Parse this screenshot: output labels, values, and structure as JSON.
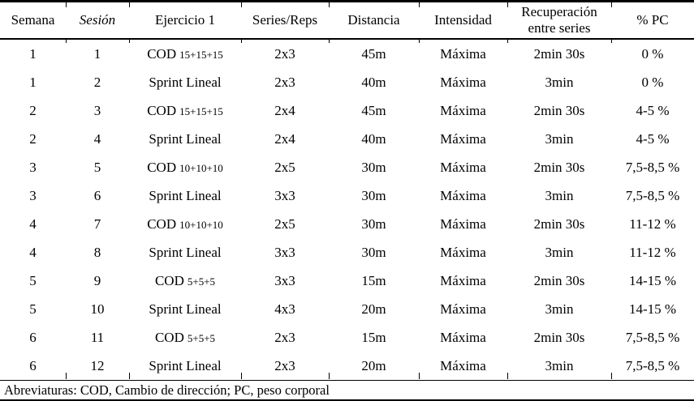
{
  "colors": {
    "background": "#ffffff",
    "text": "#000000",
    "rule": "#000000"
  },
  "table": {
    "headers": [
      "Semana",
      "Sesión",
      "Ejercicio 1",
      "Series/Reps",
      "Distancia",
      "Intensidad",
      "Recuperación entre series",
      "% PC"
    ],
    "rows": [
      {
        "semana": "1",
        "sesion": "1",
        "ejercicio": "COD",
        "ejercicio_sub": "15+15+15",
        "series_reps": "2x3",
        "distancia": "45m",
        "intensidad": "Máxima",
        "recuperacion": "2min 30s",
        "pc": "0 %"
      },
      {
        "semana": "1",
        "sesion": "2",
        "ejercicio": "Sprint Lineal",
        "ejercicio_sub": "",
        "series_reps": "2x3",
        "distancia": "40m",
        "intensidad": "Máxima",
        "recuperacion": "3min",
        "pc": "0 %"
      },
      {
        "semana": "2",
        "sesion": "3",
        "ejercicio": "COD",
        "ejercicio_sub": "15+15+15",
        "series_reps": "2x4",
        "distancia": "45m",
        "intensidad": "Máxima",
        "recuperacion": "2min 30s",
        "pc": "4-5 %"
      },
      {
        "semana": "2",
        "sesion": "4",
        "ejercicio": "Sprint Lineal",
        "ejercicio_sub": "",
        "series_reps": "2x4",
        "distancia": "40m",
        "intensidad": "Máxima",
        "recuperacion": "3min",
        "pc": "4-5 %"
      },
      {
        "semana": "3",
        "sesion": "5",
        "ejercicio": "COD",
        "ejercicio_sub": "10+10+10",
        "series_reps": "2x5",
        "distancia": "30m",
        "intensidad": "Máxima",
        "recuperacion": "2min 30s",
        "pc": "7,5-8,5 %"
      },
      {
        "semana": "3",
        "sesion": "6",
        "ejercicio": "Sprint Lineal",
        "ejercicio_sub": "",
        "series_reps": "3x3",
        "distancia": "30m",
        "intensidad": "Máxima",
        "recuperacion": "3min",
        "pc": "7,5-8,5 %"
      },
      {
        "semana": "4",
        "sesion": "7",
        "ejercicio": "COD",
        "ejercicio_sub": "10+10+10",
        "series_reps": "2x5",
        "distancia": "30m",
        "intensidad": "Máxima",
        "recuperacion": "2min 30s",
        "pc": "11-12 %"
      },
      {
        "semana": "4",
        "sesion": "8",
        "ejercicio": "Sprint Lineal",
        "ejercicio_sub": "",
        "series_reps": "3x3",
        "distancia": "30m",
        "intensidad": "Máxima",
        "recuperacion": "3min",
        "pc": "11-12 %"
      },
      {
        "semana": "5",
        "sesion": "9",
        "ejercicio": "COD",
        "ejercicio_sub": "5+5+5",
        "series_reps": "3x3",
        "distancia": "15m",
        "intensidad": "Máxima",
        "recuperacion": "2min 30s",
        "pc": "14-15 %"
      },
      {
        "semana": "5",
        "sesion": "10",
        "ejercicio": "Sprint Lineal",
        "ejercicio_sub": "",
        "series_reps": "4x3",
        "distancia": "20m",
        "intensidad": "Máxima",
        "recuperacion": "3min",
        "pc": "14-15 %"
      },
      {
        "semana": "6",
        "sesion": "11",
        "ejercicio": "COD",
        "ejercicio_sub": "5+5+5",
        "series_reps": "2x3",
        "distancia": "15m",
        "intensidad": "Máxima",
        "recuperacion": "2min 30s",
        "pc": "7,5-8,5 %"
      },
      {
        "semana": "6",
        "sesion": "12",
        "ejercicio": "Sprint Lineal",
        "ejercicio_sub": "",
        "series_reps": "2x3",
        "distancia": "20m",
        "intensidad": "Máxima",
        "recuperacion": "3min",
        "pc": "7,5-8,5 %"
      }
    ],
    "footnote": "Abreviaturas: COD, Cambio de dirección; PC, peso corporal"
  }
}
